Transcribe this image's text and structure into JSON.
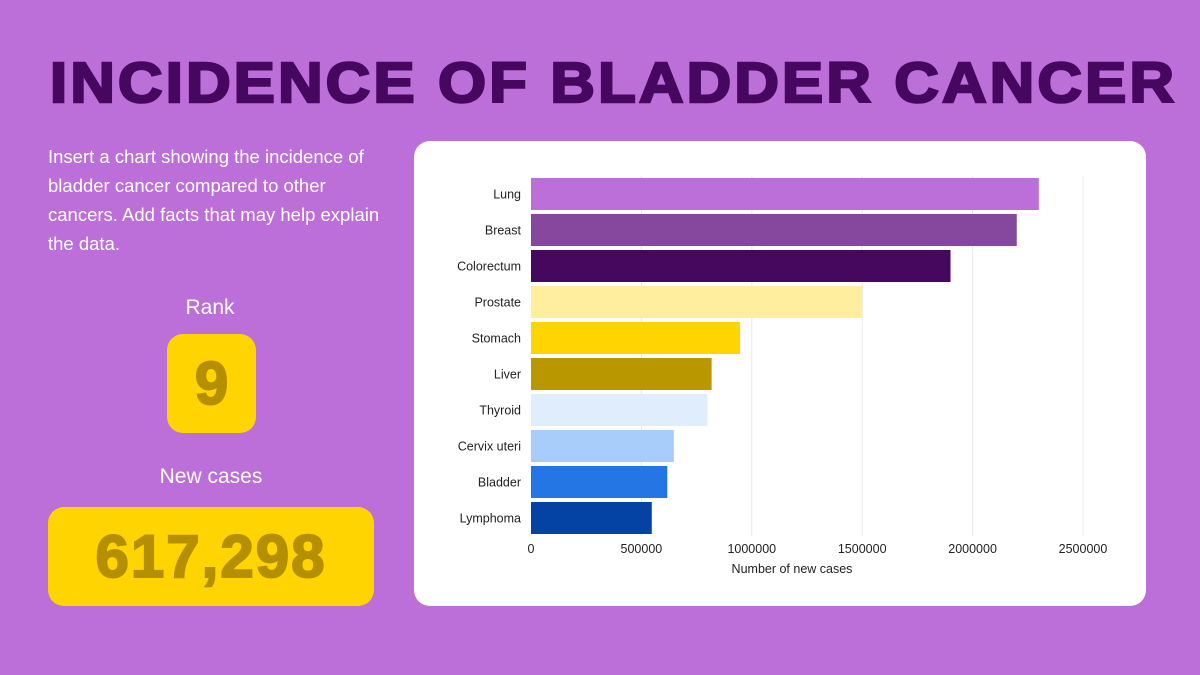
{
  "title": "INCIDENCE OF BLADDER CANCER",
  "description": "Insert a chart showing the incidence of bladder cancer compared to other cancers. Add facts that may help explain the data.",
  "rank": {
    "label": "Rank",
    "value": "9"
  },
  "new_cases": {
    "label": "New cases",
    "value": "617,298"
  },
  "chart_data": {
    "type": "bar",
    "orientation": "horizontal",
    "categories": [
      "Lung",
      "Breast",
      "Colorectum",
      "Prostate",
      "Stomach",
      "Liver",
      "Thyroid",
      "Cervix uteri",
      "Bladder",
      "Lymphoma"
    ],
    "values": [
      2300000,
      2200000,
      1900000,
      1500000,
      947000,
      818000,
      799000,
      647000,
      617298,
      547000
    ],
    "colors": [
      "#bc6ed9",
      "#85489e",
      "#46075f",
      "#ffee9e",
      "#ffd400",
      "#b89700",
      "#dfedfd",
      "#a8cdfa",
      "#2476e5",
      "#0443a3"
    ],
    "title": "",
    "xlabel": "Number of new cases",
    "ylabel": "",
    "xlim": [
      0,
      2500000
    ],
    "xticks": [
      "0",
      "500000",
      "1000000",
      "1500000",
      "2000000",
      "2500000"
    ],
    "grid": true,
    "legend": "none"
  }
}
